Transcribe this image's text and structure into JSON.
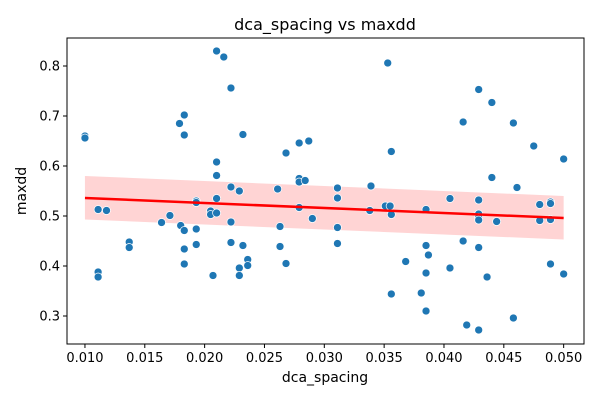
{
  "chart_data": {
    "type": "scatter",
    "title": "dca_spacing vs maxdd",
    "xlabel": "dca_spacing",
    "ylabel": "maxdd",
    "xlim": [
      0.0085,
      0.0517
    ],
    "ylim": [
      0.244,
      0.856
    ],
    "x_ticks": [
      "0.010",
      "0.015",
      "0.020",
      "0.025",
      "0.030",
      "0.035",
      "0.040",
      "0.045",
      "0.050"
    ],
    "x_tick_values": [
      0.01,
      0.015,
      0.02,
      0.025,
      0.03,
      0.035,
      0.04,
      0.045,
      0.05
    ],
    "y_ticks": [
      "0.3",
      "0.4",
      "0.5",
      "0.6",
      "0.7",
      "0.8"
    ],
    "y_tick_values": [
      0.3,
      0.4,
      0.5,
      0.6,
      0.7,
      0.8
    ],
    "grid": false,
    "legend": "none",
    "colors": {
      "points": "#1f77b4",
      "regression": "#ff0000",
      "ci_band": "#ffcccc"
    },
    "regression": {
      "x": [
        0.01,
        0.05
      ],
      "y": [
        0.536,
        0.496
      ],
      "ci_lower": [
        0.493,
        0.453
      ],
      "ci_upper": [
        0.58,
        0.54
      ]
    },
    "points": [
      {
        "x": 0.01,
        "y": 0.66
      },
      {
        "x": 0.01,
        "y": 0.656
      },
      {
        "x": 0.0111,
        "y": 0.513
      },
      {
        "x": 0.0111,
        "y": 0.388
      },
      {
        "x": 0.0111,
        "y": 0.378
      },
      {
        "x": 0.0118,
        "y": 0.511
      },
      {
        "x": 0.0137,
        "y": 0.448
      },
      {
        "x": 0.0137,
        "y": 0.437
      },
      {
        "x": 0.0164,
        "y": 0.487
      },
      {
        "x": 0.0171,
        "y": 0.501
      },
      {
        "x": 0.0179,
        "y": 0.685
      },
      {
        "x": 0.018,
        "y": 0.481
      },
      {
        "x": 0.0183,
        "y": 0.702
      },
      {
        "x": 0.0183,
        "y": 0.662
      },
      {
        "x": 0.0183,
        "y": 0.471
      },
      {
        "x": 0.0183,
        "y": 0.434
      },
      {
        "x": 0.0183,
        "y": 0.404
      },
      {
        "x": 0.0193,
        "y": 0.53
      },
      {
        "x": 0.0193,
        "y": 0.527
      },
      {
        "x": 0.0193,
        "y": 0.474
      },
      {
        "x": 0.0193,
        "y": 0.443
      },
      {
        "x": 0.0205,
        "y": 0.51
      },
      {
        "x": 0.0205,
        "y": 0.503
      },
      {
        "x": 0.0207,
        "y": 0.381
      },
      {
        "x": 0.021,
        "y": 0.83
      },
      {
        "x": 0.021,
        "y": 0.608
      },
      {
        "x": 0.021,
        "y": 0.581
      },
      {
        "x": 0.021,
        "y": 0.535
      },
      {
        "x": 0.021,
        "y": 0.506
      },
      {
        "x": 0.0216,
        "y": 0.818
      },
      {
        "x": 0.0222,
        "y": 0.756
      },
      {
        "x": 0.0222,
        "y": 0.558
      },
      {
        "x": 0.0222,
        "y": 0.488
      },
      {
        "x": 0.0222,
        "y": 0.447
      },
      {
        "x": 0.0229,
        "y": 0.55
      },
      {
        "x": 0.0229,
        "y": 0.396
      },
      {
        "x": 0.0229,
        "y": 0.381
      },
      {
        "x": 0.0232,
        "y": 0.663
      },
      {
        "x": 0.0232,
        "y": 0.441
      },
      {
        "x": 0.0236,
        "y": 0.413
      },
      {
        "x": 0.0236,
        "y": 0.401
      },
      {
        "x": 0.0261,
        "y": 0.554
      },
      {
        "x": 0.0263,
        "y": 0.479
      },
      {
        "x": 0.0263,
        "y": 0.439
      },
      {
        "x": 0.0268,
        "y": 0.626
      },
      {
        "x": 0.0268,
        "y": 0.405
      },
      {
        "x": 0.0279,
        "y": 0.646
      },
      {
        "x": 0.0279,
        "y": 0.575
      },
      {
        "x": 0.0279,
        "y": 0.568
      },
      {
        "x": 0.0279,
        "y": 0.517
      },
      {
        "x": 0.0284,
        "y": 0.571
      },
      {
        "x": 0.0287,
        "y": 0.65
      },
      {
        "x": 0.029,
        "y": 0.495
      },
      {
        "x": 0.0311,
        "y": 0.556
      },
      {
        "x": 0.0311,
        "y": 0.536
      },
      {
        "x": 0.0311,
        "y": 0.477
      },
      {
        "x": 0.0311,
        "y": 0.445
      },
      {
        "x": 0.0338,
        "y": 0.511
      },
      {
        "x": 0.0339,
        "y": 0.56
      },
      {
        "x": 0.0351,
        "y": 0.52
      },
      {
        "x": 0.0353,
        "y": 0.806
      },
      {
        "x": 0.0355,
        "y": 0.52
      },
      {
        "x": 0.0356,
        "y": 0.629
      },
      {
        "x": 0.0356,
        "y": 0.503
      },
      {
        "x": 0.0356,
        "y": 0.344
      },
      {
        "x": 0.0368,
        "y": 0.409
      },
      {
        "x": 0.0381,
        "y": 0.346
      },
      {
        "x": 0.0385,
        "y": 0.513
      },
      {
        "x": 0.0385,
        "y": 0.441
      },
      {
        "x": 0.0385,
        "y": 0.386
      },
      {
        "x": 0.0385,
        "y": 0.31
      },
      {
        "x": 0.0387,
        "y": 0.422
      },
      {
        "x": 0.0405,
        "y": 0.535
      },
      {
        "x": 0.0405,
        "y": 0.396
      },
      {
        "x": 0.0416,
        "y": 0.688
      },
      {
        "x": 0.0416,
        "y": 0.45
      },
      {
        "x": 0.0419,
        "y": 0.282
      },
      {
        "x": 0.0429,
        "y": 0.753
      },
      {
        "x": 0.0429,
        "y": 0.532
      },
      {
        "x": 0.0429,
        "y": 0.504
      },
      {
        "x": 0.0429,
        "y": 0.497
      },
      {
        "x": 0.0429,
        "y": 0.492
      },
      {
        "x": 0.0429,
        "y": 0.437
      },
      {
        "x": 0.0429,
        "y": 0.272
      },
      {
        "x": 0.0436,
        "y": 0.378
      },
      {
        "x": 0.044,
        "y": 0.727
      },
      {
        "x": 0.044,
        "y": 0.577
      },
      {
        "x": 0.0444,
        "y": 0.489
      },
      {
        "x": 0.0458,
        "y": 0.686
      },
      {
        "x": 0.0458,
        "y": 0.296
      },
      {
        "x": 0.0461,
        "y": 0.557
      },
      {
        "x": 0.0475,
        "y": 0.64
      },
      {
        "x": 0.048,
        "y": 0.523
      },
      {
        "x": 0.048,
        "y": 0.491
      },
      {
        "x": 0.0489,
        "y": 0.528
      },
      {
        "x": 0.0489,
        "y": 0.525
      },
      {
        "x": 0.0489,
        "y": 0.493
      },
      {
        "x": 0.0489,
        "y": 0.404
      },
      {
        "x": 0.05,
        "y": 0.614
      },
      {
        "x": 0.05,
        "y": 0.384
      }
    ]
  }
}
